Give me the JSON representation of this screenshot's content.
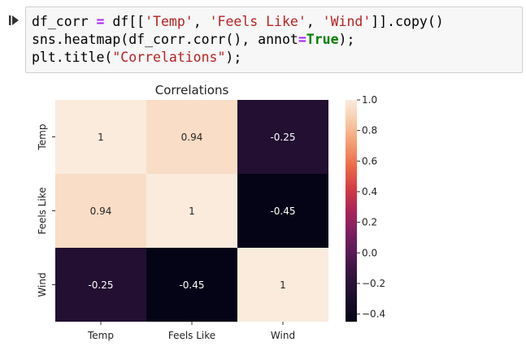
{
  "cell": {
    "run_icon": "run-cell-icon",
    "code_lines": [
      [
        {
          "t": "df_corr ",
          "c": "plain"
        },
        {
          "t": "=",
          "c": "op"
        },
        {
          "t": " df[[",
          "c": "plain"
        },
        {
          "t": "'Temp'",
          "c": "str"
        },
        {
          "t": ", ",
          "c": "plain"
        },
        {
          "t": "'Feels Like'",
          "c": "str"
        },
        {
          "t": ", ",
          "c": "plain"
        },
        {
          "t": "'Wind'",
          "c": "str"
        },
        {
          "t": "]].copy()",
          "c": "plain"
        }
      ],
      [
        {
          "t": "sns.heatmap(df_corr.corr(), annot",
          "c": "plain"
        },
        {
          "t": "=",
          "c": "op"
        },
        {
          "t": "True",
          "c": "kw"
        },
        {
          "t": ");",
          "c": "plain"
        }
      ],
      [
        {
          "t": "plt.title(",
          "c": "plain"
        },
        {
          "t": "\"Correlations\"",
          "c": "str"
        },
        {
          "t": ");",
          "c": "plain"
        }
      ]
    ]
  },
  "chart_data": {
    "type": "heatmap",
    "title": "Correlations",
    "x_labels": [
      "Temp",
      "Feels Like",
      "Wind"
    ],
    "y_labels": [
      "Temp",
      "Feels Like",
      "Wind"
    ],
    "values": [
      [
        1,
        0.94,
        -0.25
      ],
      [
        0.94,
        1,
        -0.45
      ],
      [
        -0.25,
        -0.45,
        1
      ]
    ],
    "annotations": [
      [
        "1",
        "0.94",
        "-0.25"
      ],
      [
        "0.94",
        "1",
        "-0.45"
      ],
      [
        "-0.25",
        "-0.45",
        "1"
      ]
    ],
    "colormap": "rocket",
    "colorbar": {
      "range": [
        -0.45,
        1
      ],
      "ticks": [
        1.0,
        0.8,
        0.6,
        0.4,
        0.2,
        0.0,
        -0.2,
        -0.4
      ],
      "tick_labels": [
        "1.0",
        "0.8",
        "0.6",
        "0.4",
        "0.2",
        "0.0",
        "−0.2",
        "−0.4"
      ]
    }
  }
}
